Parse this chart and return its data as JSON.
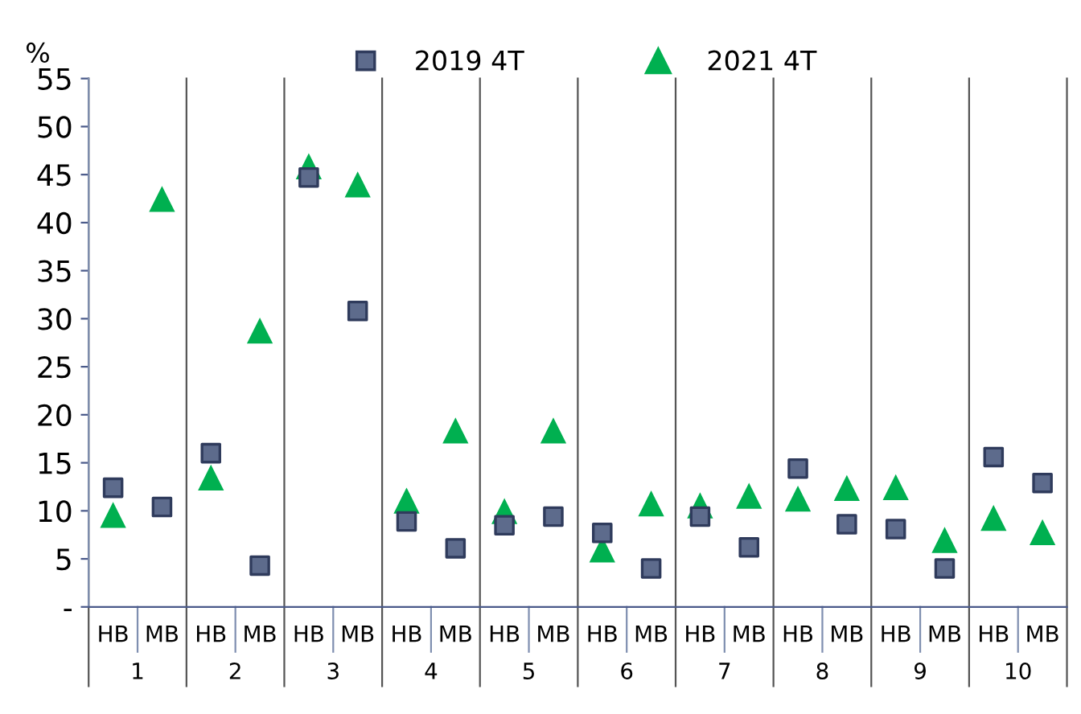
{
  "chart_data": {
    "type": "scatter",
    "ylabel": "%",
    "categories": [
      "HB",
      "MB",
      "HB",
      "MB",
      "HB",
      "MB",
      "HB",
      "MB",
      "HB",
      "MB",
      "HB",
      "MB",
      "HB",
      "MB",
      "HB",
      "MB",
      "HB",
      "MB",
      "HB",
      "MB"
    ],
    "annotations": [
      "1",
      "2",
      "3",
      "4",
      "5",
      "6",
      "7",
      "8",
      "9",
      "10"
    ],
    "series": [
      {
        "name": "2019 4T",
        "color": "#5d6b8c",
        "marker": "square",
        "values": [
          12.4,
          10.4,
          16.0,
          4.3,
          44.7,
          30.8,
          8.9,
          6.1,
          8.5,
          9.4,
          7.7,
          4.0,
          9.4,
          6.2,
          14.4,
          8.6,
          8.1,
          4.0,
          15.6,
          12.9
        ]
      },
      {
        "name": "2021 4T",
        "color": "#00b050",
        "marker": "triangle",
        "values": [
          9.5,
          42.4,
          13.4,
          28.7,
          45.8,
          43.9,
          11.0,
          18.3,
          9.9,
          18.3,
          5.9,
          10.7,
          10.5,
          11.5,
          11.2,
          12.3,
          12.4,
          6.9,
          9.2,
          7.7
        ]
      }
    ],
    "ylim": [
      0,
      55
    ],
    "yticks": [
      {
        "value": 0,
        "label": "-"
      },
      5,
      10,
      15,
      20,
      25,
      30,
      35,
      40,
      45,
      50,
      55
    ],
    "grid": false,
    "legend": "top"
  }
}
